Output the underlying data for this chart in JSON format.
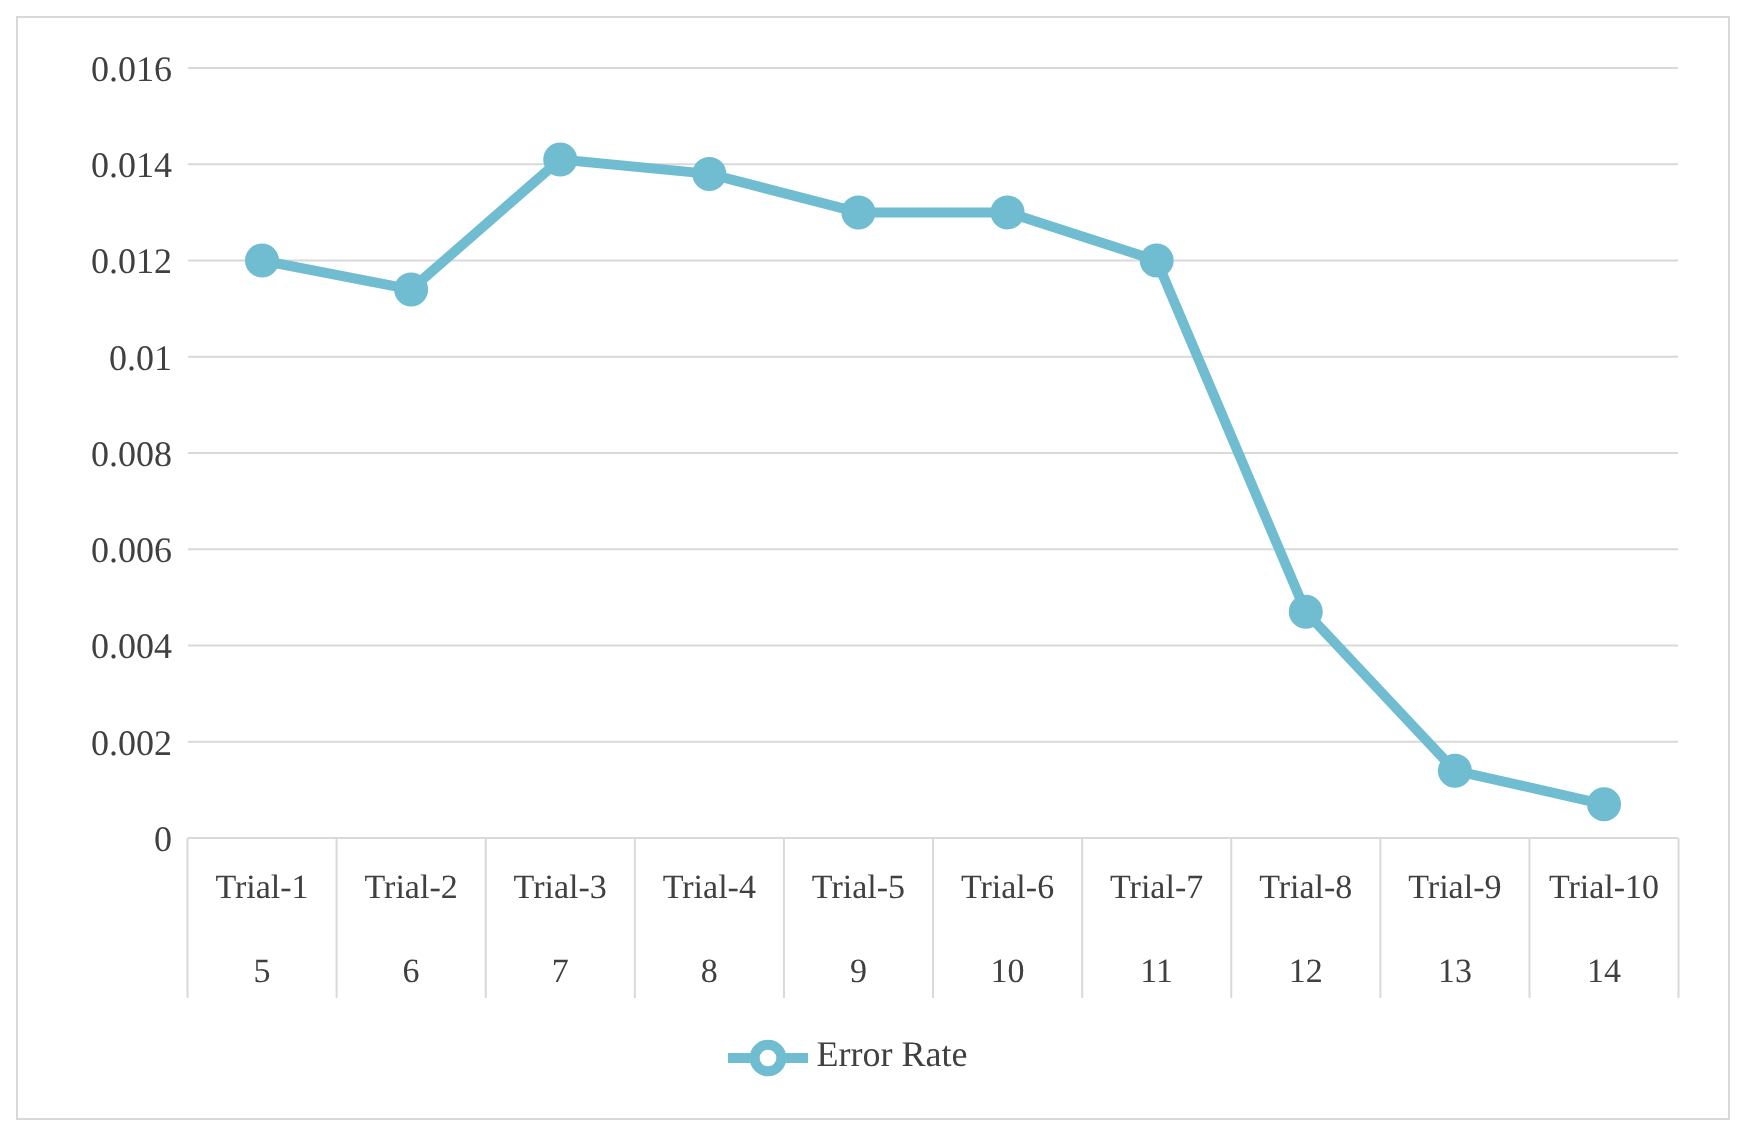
{
  "chart_data": {
    "type": "line",
    "categories": [
      "Trial-1\n5",
      "Trial-2\n6",
      "Trial-3\n7",
      "Trial-4\n8",
      "Trial-5\n9",
      "Trial-6\n10",
      "Trial-7\n11",
      "Trial-8\n12",
      "Trial-9\n13",
      "Trial-10\n14"
    ],
    "series": [
      {
        "name": "Error Rate",
        "color": "#70bcd0",
        "values": [
          0.012,
          0.0114,
          0.0141,
          0.0138,
          0.013,
          0.013,
          0.012,
          0.0047,
          0.0014,
          0.0007
        ]
      }
    ],
    "ylim": [
      0,
      0.016
    ],
    "yticks": [
      0,
      0.002,
      0.004,
      0.006,
      0.008,
      0.01,
      0.012,
      0.014,
      0.016
    ],
    "grid": "y",
    "legend": "bottom",
    "marker": "circle",
    "line_style": "solid"
  }
}
